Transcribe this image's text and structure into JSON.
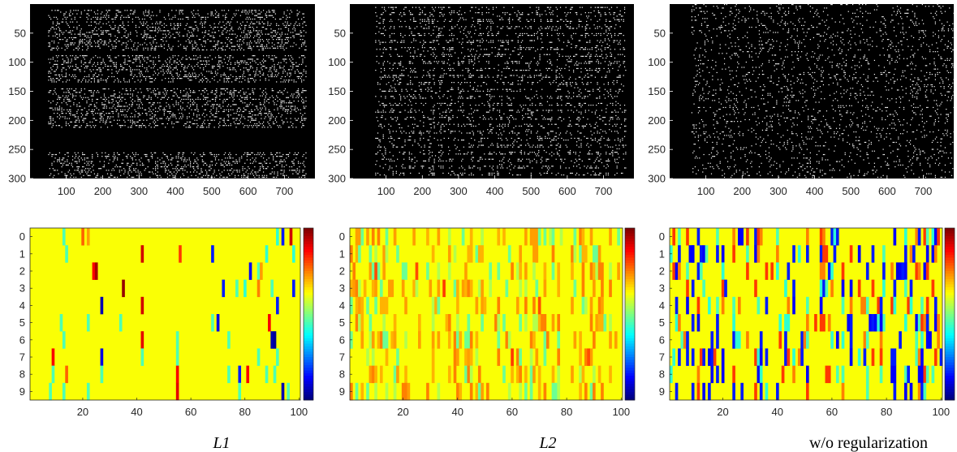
{
  "figure": {
    "captions": [
      "L1",
      "L2",
      "w/o regularization"
    ]
  },
  "chart_data": [
    {
      "type": "heatmap",
      "id": "sparsity-l1",
      "colormap": "gray",
      "xlim": [
        0,
        784
      ],
      "ylim": [
        0,
        300
      ],
      "xticks": [
        100,
        200,
        300,
        400,
        500,
        600,
        700
      ],
      "yticks": [
        50,
        100,
        150,
        200,
        250,
        300
      ],
      "x_extent": [
        50,
        760
      ],
      "row_bands": [
        [
          10,
          25
        ],
        [
          30,
          78
        ],
        [
          88,
          135
        ],
        [
          145,
          212
        ],
        [
          255,
          300
        ]
      ],
      "pattern": "horizontal-bands",
      "density": 0.22,
      "seed": 11
    },
    {
      "type": "heatmap",
      "id": "sparsity-l2",
      "colormap": "gray",
      "xlim": [
        0,
        784
      ],
      "ylim": [
        0,
        300
      ],
      "xticks": [
        100,
        200,
        300,
        400,
        500,
        600,
        700
      ],
      "yticks": [
        50,
        100,
        150,
        200,
        250,
        300
      ],
      "x_extent": [
        70,
        760
      ],
      "row_bands": [
        [
          5,
          295
        ]
      ],
      "pattern": "grid",
      "density": 0.16,
      "seed": 23
    },
    {
      "type": "heatmap",
      "id": "sparsity-none",
      "colormap": "gray",
      "xlim": [
        0,
        784
      ],
      "ylim": [
        0,
        300
      ],
      "xticks": [
        100,
        200,
        300,
        400,
        500,
        600,
        700
      ],
      "yticks": [
        50,
        100,
        150,
        200,
        250,
        300
      ],
      "x_extent": [
        60,
        784
      ],
      "row_bands": [
        [
          0,
          300
        ]
      ],
      "pattern": "random",
      "density": 0.09,
      "seed": 37
    },
    {
      "type": "heatmap",
      "id": "weights-l1",
      "colormap": "jet",
      "xlim": [
        0.5,
        100.5
      ],
      "ylim": [
        -0.5,
        9.5
      ],
      "xticks": [
        20,
        40,
        60,
        80,
        100
      ],
      "yticks": [
        0,
        1,
        2,
        3,
        4,
        5,
        6,
        7,
        8,
        9
      ],
      "background": 0.62,
      "cells": [
        {
          "x": 13,
          "rows": [
            0
          ],
          "v": 0.45
        },
        {
          "x": 20,
          "rows": [
            0
          ],
          "v": 0.78
        },
        {
          "x": 22,
          "rows": [
            0
          ],
          "v": 0.72
        },
        {
          "x": 92,
          "rows": [
            0
          ],
          "v": 0.42
        },
        {
          "x": 94,
          "rows": [
            0
          ],
          "v": 0.15
        },
        {
          "x": 97,
          "rows": [
            0
          ],
          "v": 0.92
        },
        {
          "x": 14,
          "rows": [
            1
          ],
          "v": 0.45
        },
        {
          "x": 42,
          "rows": [
            1
          ],
          "v": 0.92
        },
        {
          "x": 56,
          "rows": [
            1
          ],
          "v": 0.82
        },
        {
          "x": 68,
          "rows": [
            1
          ],
          "v": 0.15
        },
        {
          "x": 88,
          "rows": [
            1
          ],
          "v": 0.42
        },
        {
          "x": 98,
          "rows": [
            1
          ],
          "v": 0.42
        },
        {
          "x": 24,
          "rows": [
            2
          ],
          "v": 0.88
        },
        {
          "x": 25,
          "rows": [
            2
          ],
          "v": 0.96
        },
        {
          "x": 82,
          "rows": [
            2
          ],
          "v": 0.12
        },
        {
          "x": 85,
          "rows": [
            2
          ],
          "v": 0.45
        },
        {
          "x": 86,
          "rows": [
            2
          ],
          "v": 0.72
        },
        {
          "x": 35,
          "rows": [
            3
          ],
          "v": 0.98
        },
        {
          "x": 72,
          "rows": [
            3
          ],
          "v": 0.15
        },
        {
          "x": 77,
          "rows": [
            3
          ],
          "v": 0.45
        },
        {
          "x": 80,
          "rows": [
            3
          ],
          "v": 0.42
        },
        {
          "x": 85,
          "rows": [
            3
          ],
          "v": 0.75
        },
        {
          "x": 90,
          "rows": [
            3
          ],
          "v": 0.45
        },
        {
          "x": 98,
          "rows": [
            3
          ],
          "v": 0.15
        },
        {
          "x": 27,
          "rows": [
            4
          ],
          "v": 0.05
        },
        {
          "x": 42,
          "rows": [
            4
          ],
          "v": 0.92
        },
        {
          "x": 92,
          "rows": [
            4
          ],
          "v": 0.15
        },
        {
          "x": 12,
          "rows": [
            5
          ],
          "v": 0.45
        },
        {
          "x": 22,
          "rows": [
            5
          ],
          "v": 0.45
        },
        {
          "x": 34,
          "rows": [
            5
          ],
          "v": 0.45
        },
        {
          "x": 68,
          "rows": [
            5
          ],
          "v": 0.45
        },
        {
          "x": 70,
          "rows": [
            5
          ],
          "v": 0.1
        },
        {
          "x": 89,
          "rows": [
            5
          ],
          "v": 0.88
        },
        {
          "x": 13,
          "rows": [
            6
          ],
          "v": 0.45
        },
        {
          "x": 42,
          "rows": [
            6
          ],
          "v": 0.9
        },
        {
          "x": 55,
          "rows": [
            6
          ],
          "v": 0.45
        },
        {
          "x": 74,
          "rows": [
            6
          ],
          "v": 0.45
        },
        {
          "x": 90,
          "rows": [
            6
          ],
          "v": 0.05
        },
        {
          "x": 91,
          "rows": [
            6
          ],
          "v": 0.02
        },
        {
          "x": 9,
          "rows": [
            7
          ],
          "v": 0.88
        },
        {
          "x": 27,
          "rows": [
            7
          ],
          "v": 0.1
        },
        {
          "x": 42,
          "rows": [
            7
          ],
          "v": 0.45
        },
        {
          "x": 55,
          "rows": [
            7
          ],
          "v": 0.45
        },
        {
          "x": 85,
          "rows": [
            7
          ],
          "v": 0.45
        },
        {
          "x": 92,
          "rows": [
            7
          ],
          "v": 0.45
        },
        {
          "x": 9,
          "rows": [
            8
          ],
          "v": 0.45
        },
        {
          "x": 14,
          "rows": [
            8
          ],
          "v": 0.78
        },
        {
          "x": 27,
          "rows": [
            8
          ],
          "v": 0.45
        },
        {
          "x": 55,
          "rows": [
            8
          ],
          "v": 0.88
        },
        {
          "x": 74,
          "rows": [
            8
          ],
          "v": 0.45
        },
        {
          "x": 78,
          "rows": [
            8
          ],
          "v": 0.15
        },
        {
          "x": 81,
          "rows": [
            8
          ],
          "v": 0.88
        },
        {
          "x": 88,
          "rows": [
            8
          ],
          "v": 0.45
        },
        {
          "x": 91,
          "rows": [
            8
          ],
          "v": 0.45
        },
        {
          "x": 8,
          "rows": [
            9
          ],
          "v": 0.45
        },
        {
          "x": 13,
          "rows": [
            9
          ],
          "v": 0.45
        },
        {
          "x": 22,
          "rows": [
            9
          ],
          "v": 0.45
        },
        {
          "x": 55,
          "rows": [
            9
          ],
          "v": 0.9
        },
        {
          "x": 78,
          "rows": [
            9
          ],
          "v": 0.45
        },
        {
          "x": 94,
          "rows": [
            9
          ],
          "v": 0.05
        },
        {
          "x": 96,
          "rows": [
            9
          ],
          "v": 0.45
        }
      ]
    },
    {
      "type": "heatmap",
      "id": "weights-l2",
      "colormap": "jet",
      "xlim": [
        0.5,
        100.5
      ],
      "ylim": [
        -0.5,
        9.5
      ],
      "xticks": [
        20,
        40,
        60,
        80,
        100
      ],
      "yticks": [
        0,
        1,
        2,
        3,
        4,
        5,
        6,
        7,
        8,
        9
      ],
      "background": 0.62,
      "random_fill": {
        "seed": 5,
        "density": 0.22,
        "values": [
          0.48,
          0.55,
          0.7,
          0.72,
          0.75
        ],
        "col_weight": [
          [
            1,
            30,
            0.8
          ],
          [
            30,
            45,
            1.3
          ],
          [
            45,
            60,
            0.9
          ],
          [
            60,
            75,
            1.2
          ],
          [
            75,
            100,
            1.1
          ]
        ]
      },
      "cells": [
        {
          "x": 35,
          "rows": [
            3
          ],
          "v": 0.82
        },
        {
          "x": 25,
          "rows": [
            2
          ],
          "v": 0.8
        },
        {
          "x": 60,
          "rows": [
            7
          ],
          "v": 0.82
        },
        {
          "x": 10,
          "rows": [
            2
          ],
          "v": 0.8
        },
        {
          "x": 88,
          "rows": [
            7
          ],
          "v": 0.8
        },
        {
          "x": 70,
          "rows": [
            4
          ],
          "v": 0.8
        }
      ]
    },
    {
      "type": "heatmap",
      "id": "weights-none",
      "colormap": "jet",
      "xlim": [
        0.5,
        100.5
      ],
      "ylim": [
        -0.5,
        9.5
      ],
      "xticks": [
        20,
        40,
        60,
        80,
        100
      ],
      "yticks": [
        0,
        1,
        2,
        3,
        4,
        5,
        6,
        7,
        8,
        9
      ],
      "background": 0.62,
      "random_fill": {
        "seed": 71,
        "density": 0.2,
        "values": [
          0.12,
          0.15,
          0.42,
          0.75,
          0.82,
          0.15,
          0.45
        ],
        "col_weight": [
          [
            1,
            100,
            1
          ]
        ]
      },
      "cells": [
        {
          "x": 74,
          "rows": [
            5
          ],
          "v": 0.12
        },
        {
          "x": 75,
          "rows": [
            5
          ],
          "v": 0.15
        },
        {
          "x": 76,
          "rows": [
            5
          ],
          "v": 0.12
        },
        {
          "x": 77,
          "rows": [
            5
          ],
          "v": 0.42
        },
        {
          "x": 78,
          "rows": [
            5
          ],
          "v": 0.12
        },
        {
          "x": 84,
          "rows": [
            2
          ],
          "v": 0.1
        },
        {
          "x": 85,
          "rows": [
            2
          ],
          "v": 0.12
        },
        {
          "x": 86,
          "rows": [
            2
          ],
          "v": 0.15
        },
        {
          "x": 8,
          "rows": [
            1
          ],
          "v": 0.12
        },
        {
          "x": 9,
          "rows": [
            1
          ],
          "v": 0.12
        },
        {
          "x": 27,
          "rows": [
            0
          ],
          "v": 0.12
        },
        {
          "x": 29,
          "rows": [
            0
          ],
          "v": 0.82
        }
      ]
    }
  ]
}
